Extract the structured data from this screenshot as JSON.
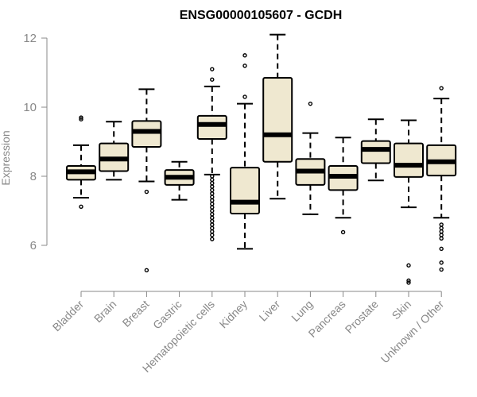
{
  "chart_data": {
    "type": "boxplot",
    "title": "ENSG00000105607 - GCDH",
    "xlabel": "",
    "ylabel": "Expression",
    "ylim": [
      4.7,
      12.1
    ],
    "yticks": [
      "6",
      "8",
      "10",
      "12"
    ],
    "box_fill": "#EFE8D0",
    "line_color": "#000000",
    "categories": [
      "Bladder",
      "Brain",
      "Breast",
      "Gastric",
      "Hematopoietic cells",
      "Kidney",
      "Liver",
      "Lung",
      "Pancreas",
      "Prostate",
      "Skin",
      "Unknown / Other"
    ],
    "series": [
      {
        "category": "Bladder",
        "whisker_low": 7.38,
        "q1": 7.9,
        "median": 8.13,
        "q3": 8.3,
        "whisker_high": 8.9,
        "outliers": [
          9.65,
          9.7,
          7.12
        ]
      },
      {
        "category": "Brain",
        "whisker_low": 7.9,
        "q1": 8.15,
        "median": 8.5,
        "q3": 8.95,
        "whisker_high": 9.58,
        "outliers": []
      },
      {
        "category": "Breast",
        "whisker_low": 7.85,
        "q1": 8.85,
        "median": 9.3,
        "q3": 9.6,
        "whisker_high": 10.52,
        "outliers": [
          7.55,
          5.28
        ]
      },
      {
        "category": "Gastric",
        "whisker_low": 7.32,
        "q1": 7.75,
        "median": 7.97,
        "q3": 8.18,
        "whisker_high": 8.42,
        "outliers": []
      },
      {
        "category": "Hematopoietic cells",
        "whisker_low": 8.05,
        "q1": 9.08,
        "median": 9.5,
        "q3": 9.75,
        "whisker_high": 10.6,
        "outliers": [
          11.1,
          10.8,
          8.0,
          7.9,
          7.8,
          7.7,
          7.6,
          7.5,
          7.4,
          7.3,
          7.2,
          7.1,
          7.0,
          6.9,
          6.8,
          6.7,
          6.6,
          6.5,
          6.4,
          6.3,
          6.18
        ]
      },
      {
        "category": "Kidney",
        "whisker_low": 5.9,
        "q1": 6.92,
        "median": 7.25,
        "q3": 8.25,
        "whisker_high": 10.1,
        "outliers": [
          11.5,
          11.2,
          10.3
        ]
      },
      {
        "category": "Liver",
        "whisker_low": 7.35,
        "q1": 8.42,
        "median": 9.2,
        "q3": 10.85,
        "whisker_high": 12.1,
        "outliers": []
      },
      {
        "category": "Lung",
        "whisker_low": 6.9,
        "q1": 7.75,
        "median": 8.15,
        "q3": 8.5,
        "whisker_high": 9.25,
        "outliers": [
          10.1
        ]
      },
      {
        "category": "Pancreas",
        "whisker_low": 6.8,
        "q1": 7.6,
        "median": 8.0,
        "q3": 8.3,
        "whisker_high": 9.12,
        "outliers": [
          6.38
        ]
      },
      {
        "category": "Prostate",
        "whisker_low": 7.88,
        "q1": 8.38,
        "median": 8.78,
        "q3": 9.02,
        "whisker_high": 9.65,
        "outliers": []
      },
      {
        "category": "Skin",
        "whisker_low": 7.1,
        "q1": 7.98,
        "median": 8.32,
        "q3": 8.95,
        "whisker_high": 9.62,
        "outliers": [
          5.42,
          4.98,
          4.92
        ]
      },
      {
        "category": "Unknown / Other",
        "whisker_low": 6.8,
        "q1": 8.02,
        "median": 8.42,
        "q3": 8.9,
        "whisker_high": 10.25,
        "outliers": [
          10.55,
          6.6,
          6.5,
          6.4,
          6.3,
          6.2,
          5.9,
          5.5,
          5.3
        ]
      }
    ]
  }
}
